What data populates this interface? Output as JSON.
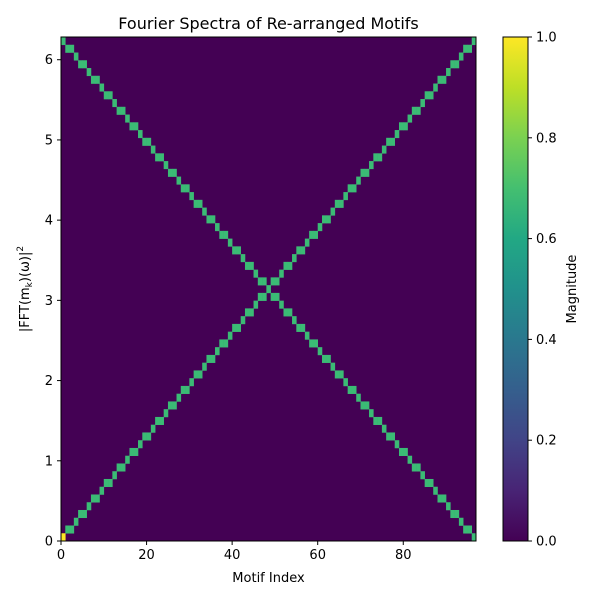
{
  "chart_data": {
    "type": "heatmap",
    "title": "Fourier Spectra of Re-arranged Motifs",
    "xlabel": "Motif Index",
    "ylabel": "|FFT(m_k)(ω)|²",
    "ylabel_parts": {
      "open": "|FFT(m",
      "sub": "k",
      "mid": ")(ω)|",
      "sup": "2"
    },
    "xlim": [
      0,
      97
    ],
    "ylim": [
      0,
      6.2832
    ],
    "n_columns": 97,
    "n_rows": 65,
    "x_ticks": [
      0,
      20,
      40,
      60,
      80
    ],
    "x_tick_labels": [
      "0",
      "20",
      "40",
      "60",
      "80"
    ],
    "y_ticks": [
      0,
      1,
      2,
      3,
      4,
      5,
      6
    ],
    "y_tick_labels": [
      "0",
      "1",
      "2",
      "3",
      "4",
      "5",
      "6"
    ],
    "pattern": "For motif index k, the peak appears at frequency bin round(k*64/96) and its mirror bin 64 - round(k*64/96); peak magnitude ~0.67, background 0.0; cell (0,0) = 1.0",
    "peak_value": 0.67,
    "background_value": 0.0,
    "max_cell": {
      "x": 0,
      "y": 0,
      "value": 1.0
    },
    "colorbar": {
      "label": "Magnitude",
      "range": [
        0.0,
        1.0
      ],
      "ticks": [
        0.0,
        0.2,
        0.4,
        0.6,
        0.8,
        1.0
      ],
      "tick_labels": [
        "0.0",
        "0.2",
        "0.4",
        "0.6",
        "0.8",
        "1.0"
      ],
      "colormap": "viridis"
    },
    "colors": {
      "background": "#440154",
      "peak": "#3bbb75",
      "max": "#fde725"
    }
  }
}
